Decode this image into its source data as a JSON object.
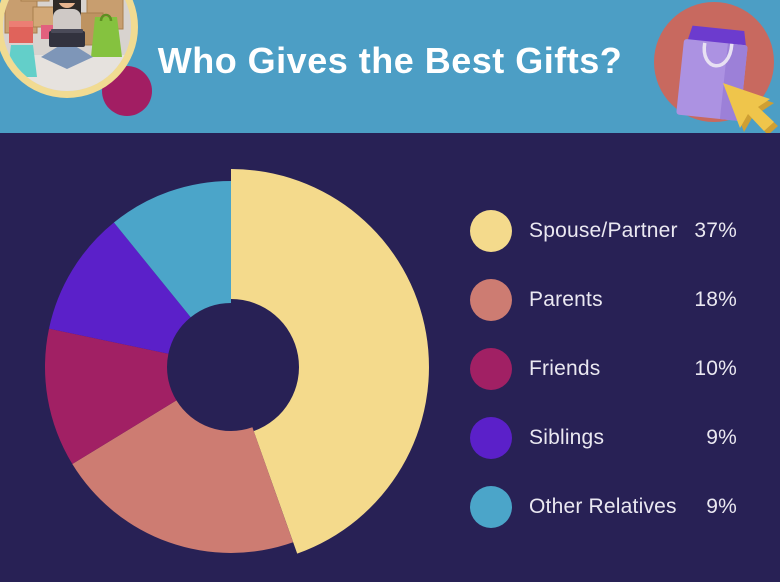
{
  "header": {
    "title": "Who Gives the Best Gifts?",
    "bg_color": "#4C9EC5"
  },
  "canvas": {
    "bg_color": "#282155"
  },
  "decor": {
    "photo_ring_color": "#F1DB92",
    "magenta_circle_color": "#A21E63",
    "bag_circle_color": "#C8695F",
    "bag_color": "#AC92E2",
    "cursor_color": "#EFC54B"
  },
  "chart_data": {
    "type": "pie",
    "donut": true,
    "title": "Who Gives the Best Gifts?",
    "start_angle_deg": 0,
    "direction": "clockwise",
    "legend_position": "right",
    "categories": [
      "Spouse/Partner",
      "Parents",
      "Friends",
      "Siblings",
      "Other Relatives"
    ],
    "values": [
      37,
      18,
      10,
      9,
      9
    ],
    "percent_labels": [
      "37%",
      "18%",
      "10%",
      "9%",
      "9%"
    ],
    "colors": [
      "#F4DA8C",
      "#CD7C72",
      "#A12064",
      "#5B20C9",
      "#4BA5C9"
    ],
    "emphasized_category": "Spouse/Partner",
    "background_color": "#282155"
  }
}
